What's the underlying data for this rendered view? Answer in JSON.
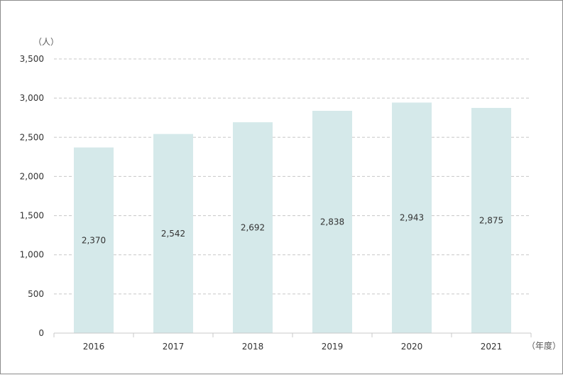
{
  "chart_data": {
    "type": "bar",
    "categories": [
      "2016",
      "2017",
      "2018",
      "2019",
      "2020",
      "2021"
    ],
    "values": [
      2370,
      2542,
      2692,
      2838,
      2943,
      2875
    ],
    "value_labels": [
      "2,370",
      "2,542",
      "2,692",
      "2,838",
      "2,943",
      "2,875"
    ],
    "y_ticks": [
      "0",
      "500",
      "1,000",
      "1,500",
      "2,000",
      "2,500",
      "3,000",
      "3,500"
    ],
    "ylim": [
      0,
      3500
    ],
    "y_unit": "（人）",
    "x_unit": "（年度）",
    "grid": true,
    "legend": "none",
    "bar_color": "#d5e9ea",
    "grid_color": "#c8c8c8",
    "axis_color": "#c8c8c8"
  }
}
